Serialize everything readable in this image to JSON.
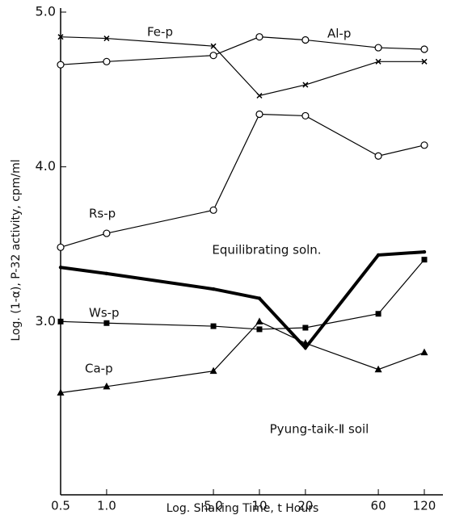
{
  "chart_data": {
    "type": "line",
    "xlabel": "Log. Shaking Time, t Hours",
    "ylabel": "Log. (1-α), P-32 activity, cpm/ml",
    "annotation": "Pyung-taik-Ⅱ soil",
    "xscale": "log",
    "x": [
      0.5,
      1,
      5,
      10,
      20,
      60,
      120
    ],
    "xlim": [
      0.5,
      120
    ],
    "xticks": [
      0.5,
      {
        "value": 1,
        "label": "1.0"
      },
      {
        "value": 5,
        "label": "5.0"
      },
      10,
      20,
      60,
      120
    ],
    "ylim": [
      1.88,
      5.0
    ],
    "yticks": [
      {
        "value": 3,
        "label": "3.0"
      },
      {
        "value": 4,
        "label": "4.0"
      },
      {
        "value": 5,
        "label": "5.0"
      }
    ],
    "series": [
      {
        "name": "Fe-p",
        "color": "#000000",
        "marker": "x",
        "values": [
          4.84,
          4.83,
          4.78,
          4.46,
          4.53,
          4.68,
          4.68
        ]
      },
      {
        "name": "Al-p",
        "color": "#000000",
        "marker": "circle",
        "values": [
          4.66,
          4.68,
          4.72,
          4.84,
          4.82,
          4.77,
          4.76
        ]
      },
      {
        "name": "Rs-p",
        "color": "#000000",
        "marker": "circle",
        "values": [
          3.48,
          3.57,
          3.72,
          4.34,
          4.33,
          4.07,
          4.14
        ]
      },
      {
        "name": "Equilibrating soln.",
        "color": "#000000",
        "marker": "dot",
        "values": [
          3.35,
          3.31,
          3.21,
          3.15,
          2.83,
          3.43,
          3.45
        ]
      },
      {
        "name": "Ws-p",
        "color": "#000000",
        "marker": "square",
        "values": [
          3.0,
          2.99,
          2.97,
          2.95,
          2.96,
          3.05,
          3.4
        ]
      },
      {
        "name": "Ca-p",
        "color": "#000000",
        "marker": "triangle",
        "values": [
          2.54,
          2.58,
          2.68,
          3.0,
          2.86,
          2.69,
          2.8
        ]
      }
    ]
  }
}
